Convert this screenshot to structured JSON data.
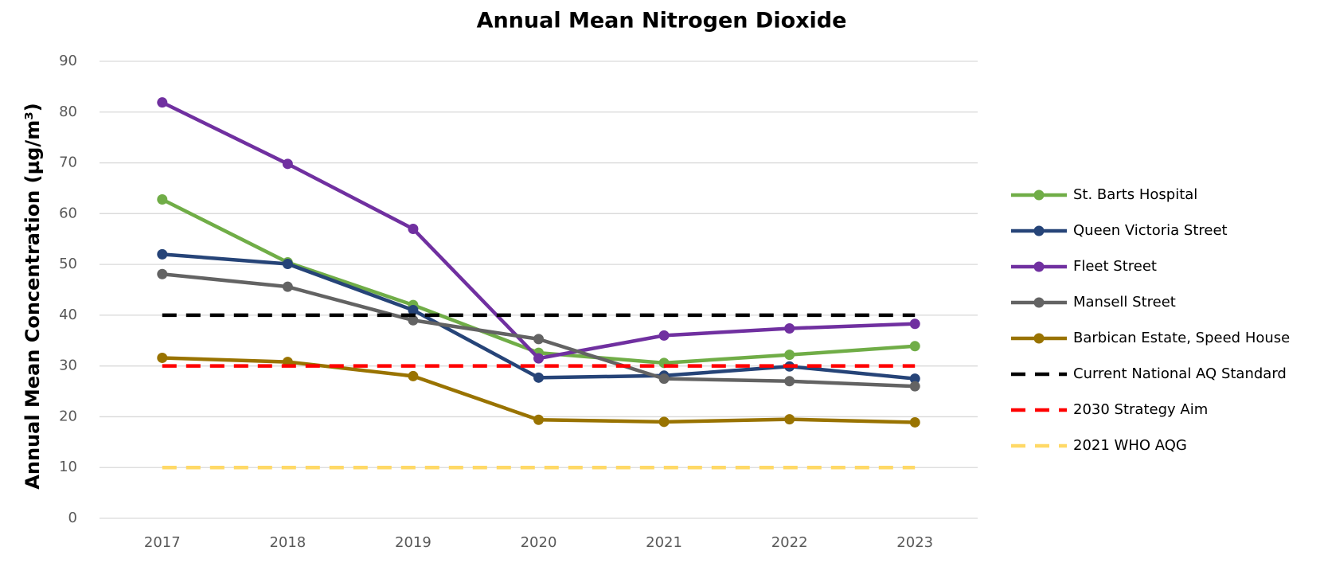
{
  "chart_data": {
    "type": "line",
    "title": "Annual Mean Nitrogen Dioxide",
    "y_label": "Annual Mean Concentration (µg/m³)",
    "categories": [
      "2017",
      "2018",
      "2019",
      "2020",
      "2021",
      "2022",
      "2023"
    ],
    "ylim": [
      0,
      90
    ],
    "yticks": [
      0,
      10,
      20,
      30,
      40,
      50,
      60,
      70,
      80,
      90
    ],
    "grid": true,
    "series": [
      {
        "name": "St. Barts Hospital",
        "color": "#70ad47",
        "dashed": false,
        "values": [
          62.8,
          50.4,
          42,
          32.6,
          30.6,
          32.2,
          33.9
        ]
      },
      {
        "name": "Queen Victoria Street",
        "color": "#264478",
        "dashed": false,
        "values": [
          52,
          50.1,
          41,
          27.7,
          28.1,
          29.9,
          27.5
        ]
      },
      {
        "name": "Fleet Street",
        "color": "#7030a0",
        "dashed": false,
        "values": [
          81.9,
          69.8,
          57,
          31.5,
          36,
          37.4,
          38.3
        ]
      },
      {
        "name": "Mansell Street",
        "color": "#636363",
        "dashed": false,
        "values": [
          48.1,
          45.6,
          39,
          35.3,
          27.5,
          27,
          26
        ]
      },
      {
        "name": "Barbican Estate, Speed House",
        "color": "#997300",
        "dashed": false,
        "values": [
          31.6,
          30.8,
          28,
          19.4,
          19,
          19.5,
          18.9
        ]
      },
      {
        "name": "Current National AQ Standard",
        "color": "#000000",
        "dashed": true,
        "values": [
          40,
          40,
          40,
          40,
          40,
          40,
          40
        ]
      },
      {
        "name": "2030 Strategy Aim",
        "color": "#ff0000",
        "dashed": true,
        "values": [
          30,
          30,
          30,
          30,
          30,
          30,
          30
        ]
      },
      {
        "name": "2021 WHO AQG",
        "color": "#ffd966",
        "dashed": true,
        "values": [
          10,
          10,
          10,
          10,
          10,
          10,
          10
        ]
      }
    ]
  }
}
